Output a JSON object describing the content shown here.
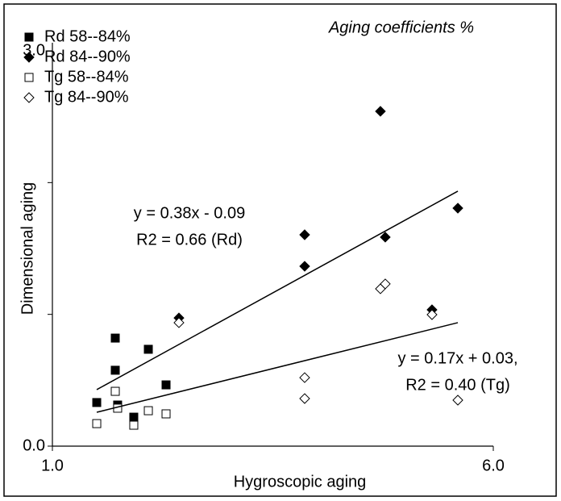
{
  "chart_data": {
    "type": "scatter",
    "title": "Aging coefficients %",
    "x_label": "Hygroscopic aging",
    "y_label": "Dimensional aging",
    "xlim": [
      1.0,
      6.0
    ],
    "ylim": [
      0.0,
      3.0
    ],
    "xticks": [
      {
        "value": 1.0,
        "label": "1.0"
      },
      {
        "value": 6.0,
        "label": "6.0"
      }
    ],
    "yticks": [
      {
        "value": 0.0,
        "label": "0.0"
      },
      {
        "value": 3.0,
        "label": "3.0"
      }
    ],
    "yminor": [
      1,
      2
    ],
    "legend": "top-left",
    "series": [
      {
        "name": "Rd 58--84%",
        "color": "#000000",
        "marker": "square",
        "filled": true,
        "x": [
          1.503,
          1.713,
          1.713,
          1.74,
          1.923,
          2.088,
          2.289
        ],
        "values": [
          0.331,
          0.82,
          0.576,
          0.312,
          0.22,
          0.735,
          0.465
        ]
      },
      {
        "name": "Rd 84--90%",
        "color": "#000000",
        "marker": "diamond",
        "filled": true,
        "x": [
          2.435,
          3.861,
          3.861,
          4.72,
          4.775,
          5.305,
          5.598
        ],
        "values": [
          0.973,
          1.604,
          1.365,
          2.541,
          1.586,
          1.035,
          1.806
        ]
      },
      {
        "name": "Tg 58--84%",
        "color": "#000000",
        "marker": "square",
        "filled": false,
        "x": [
          1.503,
          1.713,
          1.74,
          1.923,
          2.088,
          2.289
        ],
        "values": [
          0.171,
          0.416,
          0.288,
          0.159,
          0.269,
          0.245
        ]
      },
      {
        "name": "Tg 84--90%",
        "color": "#000000",
        "marker": "diamond",
        "filled": false,
        "x": [
          2.435,
          3.861,
          3.861,
          4.72,
          4.775,
          5.305,
          5.598
        ],
        "values": [
          0.937,
          0.52,
          0.361,
          1.194,
          1.231,
          0.998,
          0.349
        ]
      }
    ],
    "trendlines": [
      {
        "x": [
          1.503,
          5.598
        ],
        "values": [
          0.429,
          1.935
        ],
        "label": [
          "y = 0.38x - 0.09",
          "R2 = 0.66 (Rd)"
        ]
      },
      {
        "x": [
          1.503,
          5.598
        ],
        "values": [
          0.257,
          0.937
        ],
        "label": [
          "y = 0.17x + 0.03,",
          "R2 = 0.40 (Tg)"
        ]
      }
    ]
  }
}
